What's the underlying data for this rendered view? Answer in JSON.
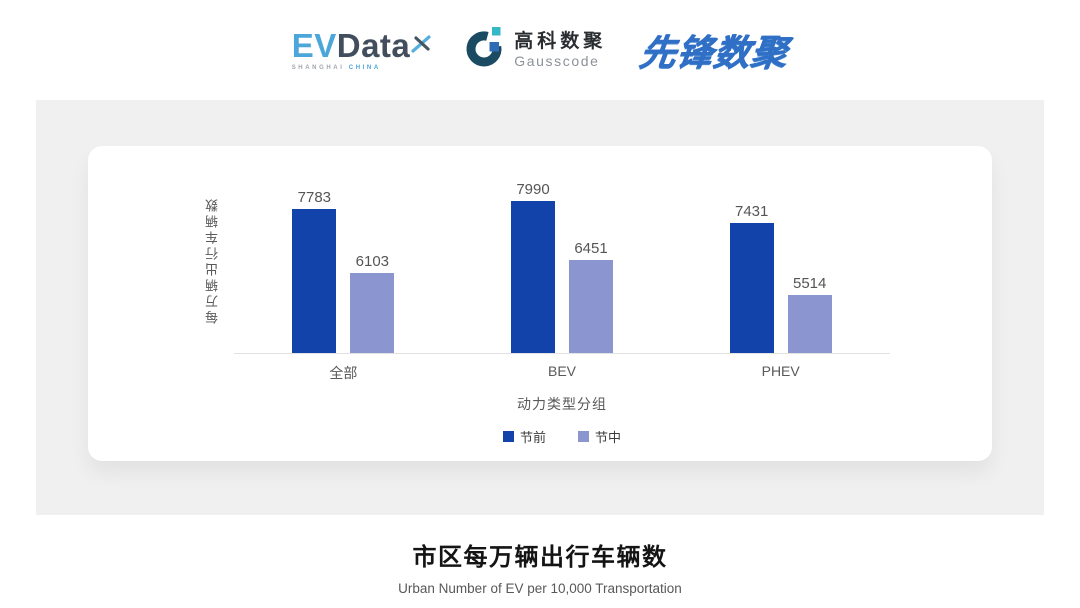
{
  "header": {
    "evdata": {
      "ev": "EV",
      "data": "Data",
      "sub_left": "SHANGHAI",
      "sub_right": "CHINA"
    },
    "gausscode": {
      "cn": "高科数聚",
      "en": "Gausscode"
    },
    "pioneer": "先锋数聚"
  },
  "chart_data": {
    "type": "bar",
    "categories": [
      "全部",
      "BEV",
      "PHEV"
    ],
    "series": [
      {
        "name": "节前",
        "color": "#1143ab",
        "values": [
          7783,
          7990,
          7431
        ]
      },
      {
        "name": "节中",
        "color": "#8b95d0",
        "values": [
          6103,
          6451,
          5514
        ]
      }
    ],
    "xlabel": "动力类型分组",
    "ylabel": "每万辆出行车辆数",
    "ylim": [
      4000,
      8500
    ],
    "grid": false,
    "legend_position": "bottom",
    "value_labels": true
  },
  "footer": {
    "title": "市区每万辆出行车辆数",
    "subtitle": "Urban Number of EV per 10,000 Transportation"
  }
}
